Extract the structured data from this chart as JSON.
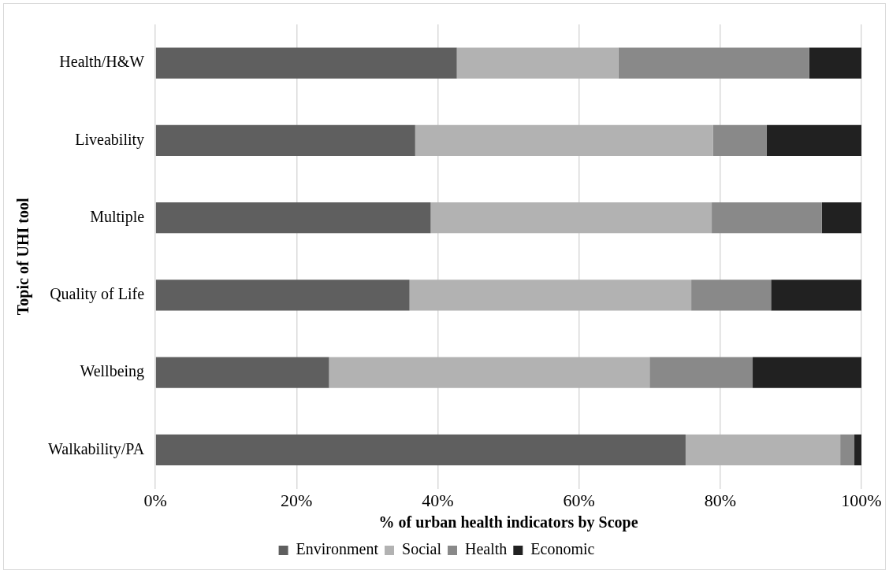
{
  "chart_data": {
    "type": "bar",
    "orientation": "horizontal",
    "stacked": true,
    "xlabel": "% of urban health indicators by Scope",
    "ylabel": "Topic of UHI tool",
    "categories": [
      "Health/H&W",
      "Liveability",
      "Multiple",
      "Quality of Life",
      "Wellbeing",
      "Walkability/PA"
    ],
    "series": [
      {
        "name": "Environment",
        "color": "#5f5f5f",
        "values": [
          42.7,
          36.8,
          39.0,
          36.0,
          24.6,
          75.1
        ]
      },
      {
        "name": "Social",
        "color": "#b2b2b2",
        "values": [
          22.9,
          42.2,
          39.8,
          39.9,
          45.4,
          21.9
        ]
      },
      {
        "name": "Health",
        "color": "#898989",
        "values": [
          27.0,
          7.6,
          15.6,
          11.3,
          14.6,
          2.0
        ]
      },
      {
        "name": "Economic",
        "color": "#212121",
        "values": [
          7.4,
          13.4,
          5.6,
          12.8,
          15.4,
          1.0
        ]
      }
    ],
    "xlim": [
      0,
      100
    ],
    "xticks": [
      {
        "value": 0,
        "label": "0%"
      },
      {
        "value": 20,
        "label": "20%"
      },
      {
        "value": 40,
        "label": "40%"
      },
      {
        "value": 60,
        "label": "60%"
      },
      {
        "value": 80,
        "label": "80%"
      },
      {
        "value": 100,
        "label": "100%"
      }
    ],
    "grid": "x",
    "legend": "bottom"
  }
}
